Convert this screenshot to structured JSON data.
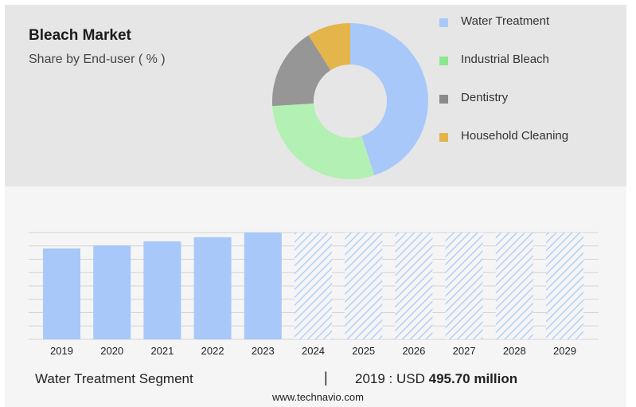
{
  "header": {
    "title": "Bleach Market",
    "subtitle": "Share by End-user ( % )"
  },
  "donut": {
    "segments": [
      {
        "label": "Water Treatment",
        "value": 45,
        "color": "#a8c8fa"
      },
      {
        "label": "Industrial Bleach",
        "value": 29,
        "color": "#b3f0b3"
      },
      {
        "label": "Dentistry",
        "value": 17,
        "color": "#969696"
      },
      {
        "label": "Household Cleaning",
        "value": 9,
        "color": "#e3b54a"
      }
    ]
  },
  "chart_data": {
    "type": "bar",
    "categories": [
      "2019",
      "2020",
      "2021",
      "2022",
      "2023",
      "2024",
      "2025",
      "2026",
      "2027",
      "2028",
      "2029"
    ],
    "values": [
      495.7,
      512,
      534,
      557,
      582,
      608,
      608,
      608,
      608,
      608,
      608
    ],
    "forecast_from_index": 5,
    "bar_color": "#a8c8fa",
    "forecast_hatch_color": "#a8c8fa",
    "ylim": [
      0,
      582
    ],
    "grid": true,
    "series_label": "Water Treatment Segment"
  },
  "footer": {
    "segment": "Water Treatment Segment",
    "separator": "|",
    "year_prefix": "2019 : USD",
    "value": "495.70 million",
    "website": "www.technavio.com"
  }
}
